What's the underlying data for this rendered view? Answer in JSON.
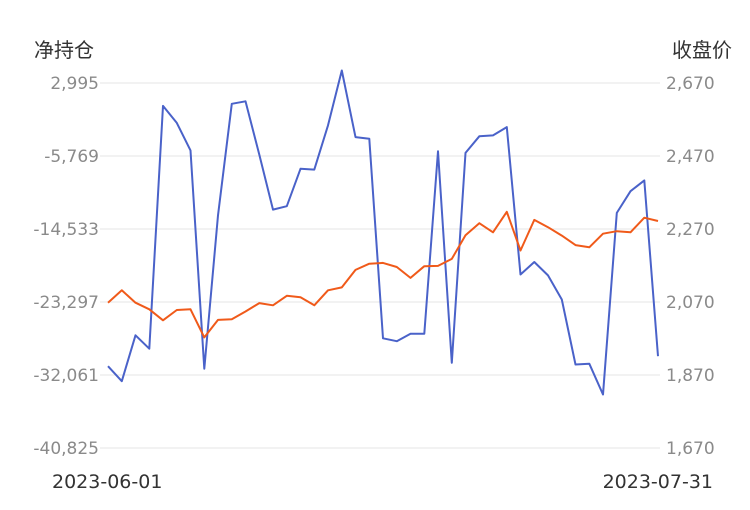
{
  "chart_data": {
    "type": "line",
    "left_axis_title": "净持仓",
    "right_axis_title": "收盘价",
    "y_left_ticks": [
      "2,995",
      "-5,769",
      "-14,533",
      "-23,297",
      "-32,061",
      "-40,825"
    ],
    "y_right_ticks": [
      "2,670",
      "2,470",
      "2,270",
      "2,070",
      "1,870",
      "1,670"
    ],
    "ylim_left": [
      -40825,
      2995
    ],
    "ylim_right": [
      1670,
      2670
    ],
    "x_labels": [
      "2023-06-01",
      "2023-07-31"
    ],
    "grid": true,
    "colors": {
      "net_position": "#4a62c9",
      "close_price": "#f05a1a"
    },
    "series": [
      {
        "axis": "left",
        "values": [
          -31000,
          -32800,
          -27300,
          -28900,
          248,
          -1800,
          -5100,
          -31300,
          -12900,
          500,
          800,
          -5600,
          -12200,
          -11800,
          -7300,
          -7400,
          -2100,
          4500,
          -3500,
          -3700,
          -27650,
          -28000,
          -27100,
          -27100,
          -5200,
          -30600,
          -5400,
          -3400,
          -3300,
          -2300,
          -20000,
          -18500,
          -20100,
          -23000,
          -30800,
          -30700,
          -34400,
          -12600,
          -10000,
          -8700,
          -29800
        ],
        "close_secondary": [
          2068,
          2102,
          2068,
          2050,
          2020,
          2048,
          2050,
          1973,
          2021,
          2023,
          2044,
          2067,
          2061,
          2087,
          2083,
          2061,
          2102,
          2110,
          2158,
          2175,
          2177,
          2166,
          2136,
          2168,
          2169,
          2188,
          2253,
          2286,
          2261,
          2317,
          2211,
          2295,
          2275,
          2252,
          2226,
          2220,
          2257,
          2264,
          2261,
          2301,
          2292
        ]
      }
    ]
  }
}
